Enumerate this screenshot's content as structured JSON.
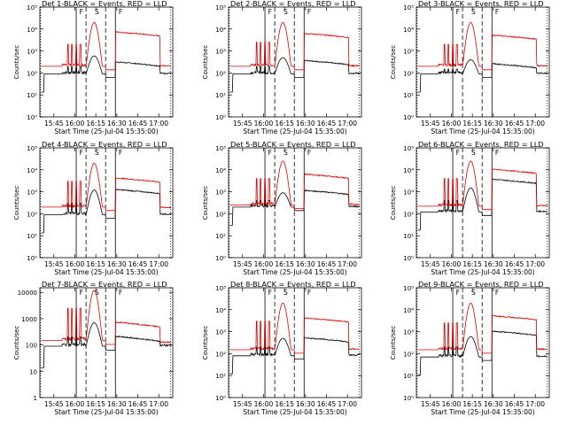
{
  "chart_data": {
    "type": "line",
    "layout": "3x3 grid of log-scale line plots",
    "colors": {
      "events": "#000000",
      "lld": "#dd0000",
      "axes": "#000000"
    },
    "x_ticks": [
      "15:45",
      "16:00",
      "16:15",
      "16:30",
      "16:45",
      "17:00"
    ],
    "xlabel": "Start Time (25-Jul-04 15:35:00)",
    "ylabel": "Counts/sec",
    "xlim": [
      "15:35",
      "17:10"
    ],
    "log_scale_y": true,
    "solid_markers": [
      "16:01",
      "16:29"
    ],
    "dashed_markers": [
      "16:08",
      "16:22"
    ],
    "dotted_markers": [
      "15:35:30",
      "17:08:30"
    ],
    "peak_labels": [
      "F",
      "S",
      "F"
    ],
    "panels": [
      {
        "title": "Det 1-BLACK = Events, RED = LLD",
        "yticks_label": [
          "10⁰",
          "10¹",
          "10²",
          "10³",
          "10⁴",
          "10⁵"
        ],
        "ylim": [
          1,
          100000
        ],
        "series": [
          {
            "name": "Events",
            "values": {
              "base": 90,
              "spike_top": 200,
              "peak": 600,
              "post": 300
            }
          },
          {
            "name": "LLD",
            "values": {
              "base": 200,
              "spike_top": 2000,
              "peak": 20000,
              "post": 7000,
              "tail": 200
            }
          }
        ]
      },
      {
        "title": "Det 2-BLACK = Events, RED = LLD",
        "yticks_label": [
          "10⁰",
          "10¹",
          "10²",
          "10³",
          "10⁴",
          "10⁵"
        ],
        "ylim": [
          1,
          100000
        ],
        "series": [
          {
            "name": "Events",
            "values": {
              "base": 90,
              "spike_top": 200,
              "peak": 500,
              "post": 350
            }
          },
          {
            "name": "LLD",
            "values": {
              "base": 200,
              "spike_top": 2500,
              "peak": 20000,
              "post": 6000,
              "tail": 200
            }
          }
        ]
      },
      {
        "title": "Det 3-BLACK = Events, RED = LLD",
        "yticks_label": [
          "10⁰",
          "10¹",
          "10²",
          "10³",
          "10⁴",
          "10⁵"
        ],
        "ylim": [
          1,
          100000
        ],
        "series": [
          {
            "name": "Events",
            "values": {
              "base": 90,
              "spike_top": 150,
              "peak": 400,
              "post": 250
            }
          },
          {
            "name": "LLD",
            "values": {
              "base": 200,
              "spike_top": 2000,
              "peak": 20000,
              "post": 5000,
              "tail": 200
            }
          }
        ]
      },
      {
        "title": "Det 4-BLACK = Events, RED = LLD",
        "yticks_label": [
          "10⁰",
          "10¹",
          "10²",
          "10³",
          "10⁴",
          "10⁵"
        ],
        "ylim": [
          1,
          100000
        ],
        "series": [
          {
            "name": "Events",
            "values": {
              "base": 90,
              "spike_top": 300,
              "peak": 1200,
              "post": 1200
            }
          },
          {
            "name": "LLD",
            "values": {
              "base": 200,
              "spike_top": 3000,
              "peak": 20000,
              "post": 4000,
              "tail": 180
            }
          }
        ]
      },
      {
        "title": "Det 5-BLACK = Events, RED = LLD",
        "yticks_label": [
          "10⁰",
          "10¹",
          "10²",
          "10³",
          "10⁴",
          "10⁵"
        ],
        "ylim": [
          1,
          100000
        ],
        "series": [
          {
            "name": "Events",
            "values": {
              "base": 200,
              "spike_top": 400,
              "peak": 900,
              "post": 1100
            }
          },
          {
            "name": "LLD",
            "values": {
              "base": 250,
              "spike_top": 4000,
              "peak": 25000,
              "post": 6000,
              "tail": 250
            }
          }
        ]
      },
      {
        "title": "Det 6-BLACK = Events, RED = LLD",
        "yticks_label": [
          "10⁰",
          "10¹",
          "10²",
          "10³",
          "10⁴",
          "10⁵"
        ],
        "ylim": [
          1,
          100000
        ],
        "series": [
          {
            "name": "Events",
            "values": {
              "base": 120,
              "spike_top": 400,
              "peak": 1500,
              "post": 3500
            }
          },
          {
            "name": "LLD",
            "values": {
              "base": 220,
              "spike_top": 4000,
              "peak": 25000,
              "post": 10000,
              "tail": 220
            }
          }
        ]
      },
      {
        "title": "Det 7-BLACK = Events, RED = LLD",
        "yticks_label": [
          "1",
          "10",
          "100",
          "1000",
          "10000"
        ],
        "ylim": [
          1,
          15000
        ],
        "series": [
          {
            "name": "Events",
            "values": {
              "base": 90,
              "spike_top": 200,
              "peak": 700,
              "post": 200
            }
          },
          {
            "name": "LLD",
            "values": {
              "base": 150,
              "spike_top": 2500,
              "peak": 12000,
              "post": 700,
              "tail": 120
            }
          }
        ]
      },
      {
        "title": "Det 8-BLACK = Events, RED = LLD",
        "yticks_label": [
          "10⁰",
          "10¹",
          "10²",
          "10³",
          "10⁴",
          "10⁵"
        ],
        "ylim": [
          1,
          100000
        ],
        "series": [
          {
            "name": "Events",
            "values": {
              "base": 80,
              "spike_top": 200,
              "peak": 500,
              "post": 500
            }
          },
          {
            "name": "LLD",
            "values": {
              "base": 150,
              "spike_top": 3000,
              "peak": 20000,
              "post": 4000,
              "tail": 150
            }
          }
        ]
      },
      {
        "title": "Det 9-BLACK = Events, RED = LLD",
        "yticks_label": [
          "10⁰",
          "10¹",
          "10²",
          "10³",
          "10⁴",
          "10⁵"
        ],
        "ylim": [
          1,
          100000
        ],
        "series": [
          {
            "name": "Events",
            "values": {
              "base": 70,
              "spike_top": 200,
              "peak": 600,
              "post": 1000
            }
          },
          {
            "name": "LLD",
            "values": {
              "base": 150,
              "spike_top": 2500,
              "peak": 20000,
              "post": 5000,
              "tail": 150
            }
          }
        ]
      }
    ]
  }
}
